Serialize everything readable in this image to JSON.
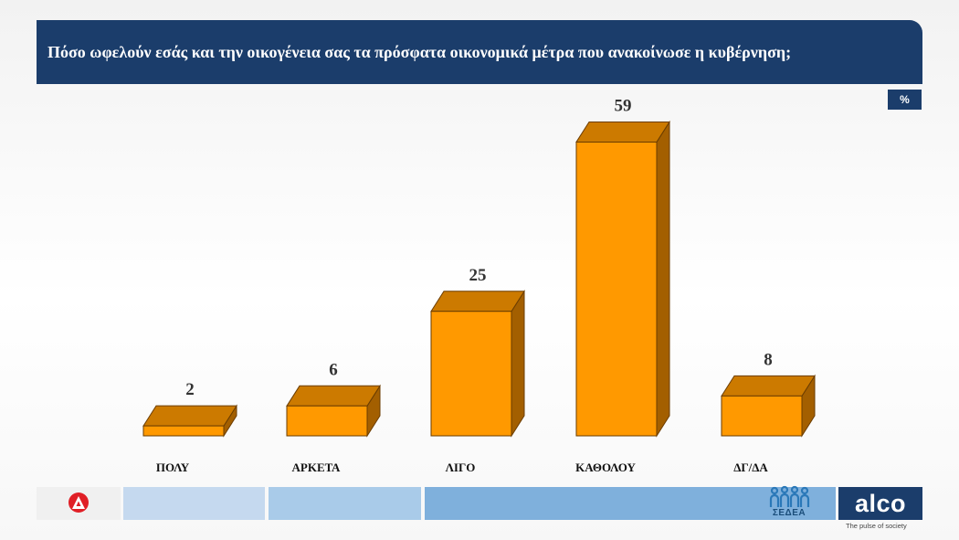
{
  "header": {
    "title": "Πόσο ωφελούν εσάς και την οικογένεια σας τα πρόσφατα οικονομικά μέτρα που ανακοίνωσε η κυβέρνηση;",
    "unit_badge": "%"
  },
  "chart_data": {
    "type": "bar",
    "title": "Πόσο ωφελούν εσάς και την οικογένεια σας τα πρόσφατα οικονομικά μέτρα που ανακοίνωσε η κυβέρνηση;",
    "categories": [
      "ΠΟΛΥ",
      "ΑΡΚΕΤΑ",
      "ΛΙΓΟ",
      "ΚΑΘΟΛΟΥ",
      "ΔΓ/ΔΑ"
    ],
    "values": [
      2,
      6,
      25,
      59,
      8
    ],
    "unit": "%",
    "style": "3d-bars",
    "colors": {
      "front": "#ff9900",
      "top": "#cc7a00",
      "side": "#a35f00",
      "edge": "#6b3d00"
    },
    "grid": false,
    "legend": "none"
  },
  "footer": {
    "colors": [
      "#c5d9ef",
      "#a9cbe9",
      "#7fb0dc"
    ],
    "sedea_label": "ΣΕΔΕΑ",
    "brand": "alco",
    "tagline": "The pulse of society"
  }
}
